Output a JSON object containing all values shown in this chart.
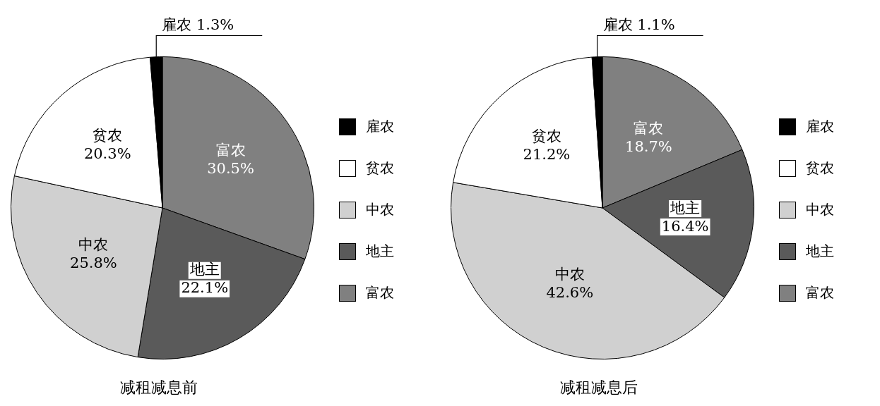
{
  "chart_data": [
    {
      "type": "pie",
      "title": "减租减息前",
      "categories": [
        "富农",
        "地主",
        "中农",
        "贫农",
        "雇农"
      ],
      "values": [
        30.5,
        22.1,
        25.8,
        20.3,
        1.3
      ],
      "colors": [
        "#808080",
        "#5a5a5a",
        "#d0d0d0",
        "#ffffff",
        "#000000"
      ],
      "value_labels": [
        "30.5%",
        "22.1%",
        "25.8%",
        "20.3%",
        "1.3%"
      ],
      "legend": "right"
    },
    {
      "type": "pie",
      "title": "减租减息后",
      "categories": [
        "富农",
        "地主",
        "中农",
        "贫农",
        "雇农"
      ],
      "values": [
        18.7,
        16.4,
        42.6,
        21.2,
        1.1
      ],
      "colors": [
        "#808080",
        "#5a5a5a",
        "#d0d0d0",
        "#ffffff",
        "#000000"
      ],
      "value_labels": [
        "18.7%",
        "16.4%",
        "42.6%",
        "21.2%",
        "1.1%"
      ],
      "legend": "right"
    }
  ]
}
